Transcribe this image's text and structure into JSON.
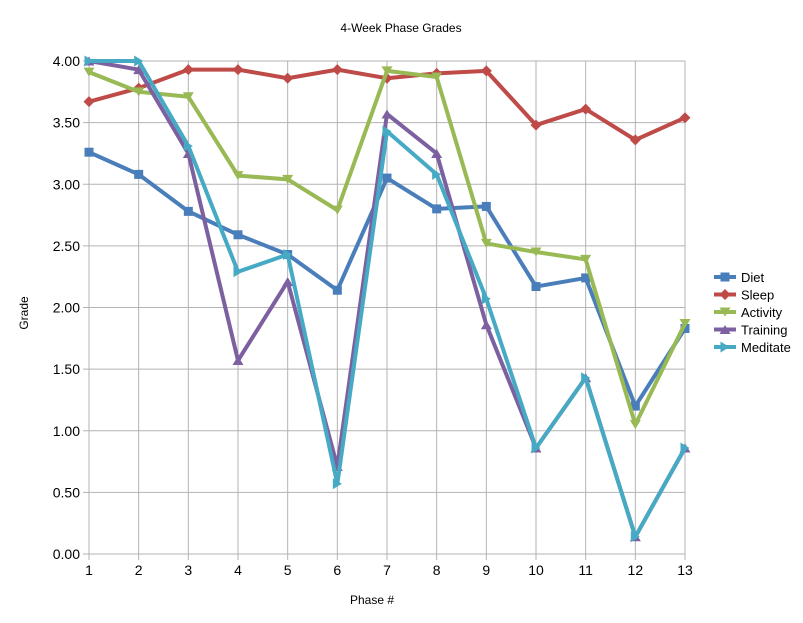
{
  "chart_data": {
    "type": "line",
    "title": "4-Week Phase Grades",
    "xlabel": "Phase #",
    "ylabel": "Grade",
    "x": [
      1,
      2,
      3,
      4,
      5,
      6,
      7,
      8,
      9,
      10,
      11,
      12,
      13
    ],
    "xlim": [
      1,
      13
    ],
    "ylim": [
      0,
      4
    ],
    "yticks": [
      "0.00",
      "0.50",
      "1.00",
      "1.50",
      "2.00",
      "2.50",
      "3.00",
      "3.50",
      "4.00"
    ],
    "xticks": [
      "1",
      "2",
      "3",
      "4",
      "5",
      "6",
      "7",
      "8",
      "9",
      "10",
      "11",
      "12",
      "13"
    ],
    "grid": true,
    "legend_position": "right",
    "series": [
      {
        "name": "Diet",
        "color": "#4a7ebb",
        "marker": "square",
        "values": [
          3.26,
          3.08,
          2.78,
          2.59,
          2.43,
          2.14,
          3.05,
          2.8,
          2.82,
          2.17,
          2.24,
          1.2,
          1.83
        ]
      },
      {
        "name": "Sleep",
        "color": "#be4b48",
        "marker": "diamond",
        "values": [
          3.67,
          3.78,
          3.93,
          3.93,
          3.86,
          3.93,
          3.86,
          3.9,
          3.92,
          3.48,
          3.61,
          3.36,
          3.54
        ]
      },
      {
        "name": "Activity",
        "color": "#98b954",
        "marker": "triangle-down",
        "values": [
          3.91,
          3.75,
          3.71,
          3.07,
          3.04,
          2.79,
          3.92,
          3.87,
          2.52,
          2.45,
          2.39,
          1.05,
          1.87
        ]
      },
      {
        "name": "Training",
        "color": "#7d60a0",
        "marker": "triangle-up",
        "values": [
          4.0,
          3.93,
          3.25,
          1.57,
          2.21,
          0.71,
          3.57,
          3.25,
          1.86,
          0.86,
          1.43,
          0.14,
          0.86
        ]
      },
      {
        "name": "Meditate",
        "color": "#46aac5",
        "marker": "triangle-right",
        "values": [
          4.0,
          4.0,
          3.31,
          2.29,
          2.43,
          0.57,
          3.43,
          3.08,
          2.07,
          0.86,
          1.43,
          0.14,
          0.86
        ]
      }
    ]
  }
}
